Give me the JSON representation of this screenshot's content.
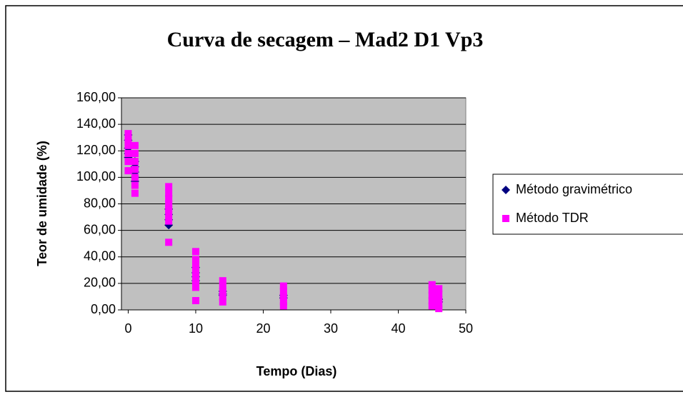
{
  "chart_data": {
    "type": "scatter",
    "title": "Curva de secagem – Mad2 D1 Vp3",
    "x_label": "Tempo (Dias)",
    "y_label": "Teor de umidade (%)",
    "xlim": [
      -1,
      50
    ],
    "xticks": [
      0,
      10,
      20,
      30,
      40,
      50
    ],
    "ylim": [
      0,
      160
    ],
    "yticks": [
      {
        "value": 0,
        "label": "0,00"
      },
      {
        "value": 20,
        "label": "20,00"
      },
      {
        "value": 40,
        "label": "40,00"
      },
      {
        "value": 60,
        "label": "60,00"
      },
      {
        "value": 80,
        "label": "80,00"
      },
      {
        "value": 100,
        "label": "100,00"
      },
      {
        "value": 120,
        "label": "120,00"
      },
      {
        "value": 140,
        "label": "140,00"
      },
      {
        "value": 160,
        "label": "160,00"
      }
    ],
    "grid": true,
    "legend": "right",
    "series": [
      {
        "name": "Método gravimétrico",
        "color": "#000080",
        "marker": "diamond",
        "x": [
          0,
          0,
          0,
          0,
          0,
          1,
          1,
          1,
          1,
          1,
          6,
          6,
          6,
          6,
          10,
          10,
          10,
          10,
          14,
          14,
          14,
          23,
          23,
          46,
          46
        ],
        "values": [
          132,
          128,
          122,
          118,
          115,
          112,
          108,
          104,
          100,
          97,
          76,
          72,
          68,
          64,
          32,
          28,
          25,
          22,
          14,
          12,
          11,
          11,
          9,
          8,
          6
        ]
      },
      {
        "name": "Método TDR",
        "color": "#ff00ff",
        "marker": "square",
        "x": [
          0,
          0,
          0,
          0,
          0,
          0,
          1,
          1,
          1,
          1,
          1,
          1,
          1,
          6,
          6,
          6,
          6,
          6,
          6,
          6,
          6,
          10,
          10,
          10,
          10,
          10,
          10,
          10,
          10,
          14,
          14,
          14,
          14,
          14,
          23,
          23,
          23,
          23,
          23,
          45,
          45,
          45,
          45,
          45,
          46,
          46,
          46,
          46,
          46
        ],
        "values": [
          133,
          128,
          124,
          118,
          112,
          105,
          124,
          118,
          112,
          106,
          100,
          94,
          88,
          93,
          88,
          84,
          80,
          76,
          72,
          67,
          51,
          44,
          38,
          34,
          30,
          26,
          22,
          17,
          7,
          22,
          18,
          14,
          10,
          6,
          18,
          14,
          10,
          6,
          3,
          19,
          15,
          11,
          7,
          3,
          16,
          12,
          8,
          4,
          1
        ]
      }
    ]
  }
}
